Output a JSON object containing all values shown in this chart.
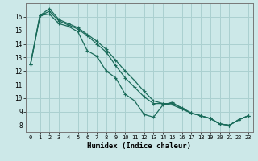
{
  "xlabel": "Humidex (Indice chaleur)",
  "xlim": [
    -0.5,
    23.5
  ],
  "ylim": [
    7.5,
    17.0
  ],
  "yticks": [
    8,
    9,
    10,
    11,
    12,
    13,
    14,
    15,
    16
  ],
  "xticks": [
    0,
    1,
    2,
    3,
    4,
    5,
    6,
    7,
    8,
    9,
    10,
    11,
    12,
    13,
    14,
    15,
    16,
    17,
    18,
    19,
    20,
    21,
    22,
    23
  ],
  "bg_color": "#cce8e8",
  "grid_color": "#aad0d0",
  "line_color": "#1a6b5a",
  "curves": [
    [
      12.5,
      16.1,
      16.2,
      15.5,
      15.3,
      14.9,
      13.5,
      13.1,
      12.0,
      11.5,
      10.3,
      9.8,
      8.8,
      8.6,
      9.5,
      9.7,
      9.2,
      8.9,
      8.7,
      8.5,
      8.1,
      8.0,
      8.4,
      8.7
    ],
    [
      12.5,
      16.1,
      16.6,
      15.8,
      15.5,
      15.2,
      14.7,
      14.2,
      13.6,
      12.8,
      12.0,
      11.3,
      10.5,
      9.8,
      9.6,
      9.5,
      9.2,
      8.9,
      8.7,
      8.5,
      8.1,
      8.0,
      8.4,
      8.7
    ],
    [
      12.5,
      16.1,
      16.4,
      15.7,
      15.4,
      15.1,
      14.6,
      14.0,
      13.4,
      12.4,
      11.5,
      10.8,
      10.1,
      9.6,
      9.6,
      9.6,
      9.3,
      8.9,
      8.7,
      8.5,
      8.1,
      8.0,
      8.4,
      8.7
    ]
  ]
}
